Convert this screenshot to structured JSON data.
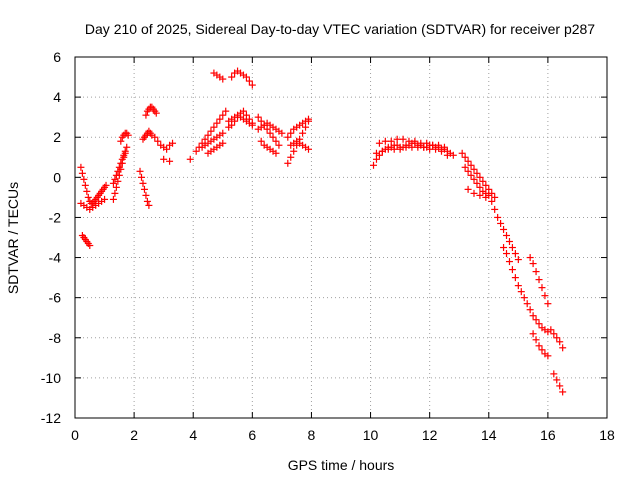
{
  "chart_data": {
    "type": "scatter",
    "title": "Day 210 of 2025, Sidereal Day-to-day VTEC variation (SDTVAR) for receiver p287",
    "xlabel": "GPS time / hours",
    "ylabel": "SDTVAR / TECUs",
    "xlim": [
      0,
      18
    ],
    "ylim": [
      -12,
      6
    ],
    "xticks": [
      0,
      2,
      4,
      6,
      8,
      10,
      12,
      14,
      16,
      18
    ],
    "yticks": [
      6,
      4,
      2,
      0,
      -2,
      -4,
      -6,
      -8,
      -10,
      -12
    ],
    "marker": "+",
    "color": "#ff0000",
    "grid": true,
    "series": [
      {
        "name": "p287",
        "x": [
          0.2,
          0.25,
          0.3,
          0.35,
          0.4,
          0.45,
          0.5,
          0.55,
          0.6,
          0.65,
          0.7,
          0.75,
          0.8,
          0.85,
          0.9,
          0.95,
          1.0,
          1.05,
          0.2,
          0.3,
          0.4,
          0.5,
          0.6,
          0.7,
          0.8,
          0.9,
          1.0,
          0.25,
          0.3,
          0.35,
          0.4,
          0.45,
          0.5,
          1.3,
          1.35,
          1.4,
          1.45,
          1.5,
          1.55,
          1.6,
          1.65,
          1.7,
          1.3,
          1.35,
          1.4,
          1.45,
          1.5,
          1.55,
          1.6,
          1.65,
          1.7,
          1.75,
          1.55,
          1.6,
          1.65,
          1.7,
          1.75,
          1.8,
          2.2,
          2.25,
          2.3,
          2.35,
          2.4,
          2.45,
          2.5,
          2.4,
          2.45,
          2.5,
          2.55,
          2.6,
          2.65,
          2.7,
          2.75,
          2.3,
          2.35,
          2.4,
          2.45,
          2.5,
          2.55,
          2.6,
          2.7,
          2.8,
          2.9,
          3.0,
          3.1,
          3.2,
          3.3,
          3.0,
          3.2,
          3.9,
          4.1,
          4.2,
          4.3,
          4.4,
          4.5,
          4.6,
          4.7,
          4.8,
          4.9,
          5.0,
          5.1,
          4.3,
          4.4,
          4.5,
          4.6,
          4.7,
          4.8,
          4.9,
          5.0,
          4.5,
          4.6,
          4.7,
          4.8,
          4.9,
          5.0,
          4.7,
          4.8,
          4.9,
          5.0,
          5.2,
          5.3,
          5.4,
          5.5,
          5.6,
          5.7,
          5.8,
          5.9,
          6.0,
          5.2,
          5.3,
          5.4,
          5.5,
          5.6,
          5.7,
          5.8,
          5.9,
          6.0,
          5.3,
          5.4,
          5.5,
          5.6,
          5.7,
          5.8,
          5.9,
          6.0,
          6.2,
          6.3,
          6.4,
          6.5,
          6.6,
          6.7,
          6.8,
          6.9,
          6.2,
          6.3,
          6.4,
          6.5,
          6.6,
          6.7,
          6.8,
          6.9,
          7.0,
          6.3,
          6.4,
          6.5,
          6.6,
          6.7,
          6.8,
          7.2,
          7.3,
          7.4,
          7.5,
          7.6,
          7.7,
          7.8,
          7.9,
          7.2,
          7.3,
          7.4,
          7.5,
          7.6,
          7.7,
          7.8,
          7.9,
          7.3,
          7.4,
          7.5,
          7.6,
          7.7,
          7.8,
          7.9,
          10.1,
          10.2,
          10.3,
          10.4,
          10.5,
          10.6,
          10.7,
          10.8,
          10.9,
          11.0,
          11.1,
          11.2,
          11.3,
          11.4,
          11.5,
          11.6,
          11.7,
          11.8,
          11.9,
          12.0,
          12.1,
          12.2,
          12.3,
          12.4,
          12.5,
          12.6,
          12.7,
          12.8,
          10.2,
          10.4,
          10.6,
          10.8,
          11.0,
          11.2,
          11.4,
          11.6,
          11.8,
          12.0,
          12.2,
          12.4,
          12.6,
          10.3,
          10.5,
          10.7,
          10.9,
          11.1,
          11.3,
          11.5,
          11.7,
          11.9,
          12.1,
          12.3,
          12.5,
          13.1,
          13.2,
          13.3,
          13.4,
          13.5,
          13.6,
          13.7,
          13.8,
          13.9,
          14.0,
          14.1,
          14.2,
          13.2,
          13.3,
          13.4,
          13.5,
          13.6,
          13.7,
          13.8,
          13.9,
          14.0,
          13.3,
          13.5,
          13.7,
          13.9,
          14.1,
          14.2,
          14.3,
          14.4,
          14.5,
          14.6,
          14.7,
          14.8,
          14.9,
          15.0,
          14.5,
          14.6,
          14.7,
          14.8,
          14.9,
          15.0,
          15.1,
          15.2,
          15.3,
          15.4,
          15.5,
          15.6,
          15.7,
          15.8,
          15.9,
          16.0,
          16.1,
          15.4,
          15.5,
          15.6,
          15.7,
          15.8,
          15.9,
          16.0,
          15.5,
          15.6,
          15.7,
          15.8,
          15.9,
          16.0,
          16.2,
          16.3,
          16.4,
          16.5,
          16.2,
          16.3,
          16.4,
          16.5
        ],
        "y": [
          0.5,
          0.2,
          -0.1,
          -0.4,
          -0.7,
          -1.0,
          -1.2,
          -1.3,
          -1.3,
          -1.2,
          -1.1,
          -1.0,
          -0.9,
          -0.8,
          -0.7,
          -0.6,
          -0.5,
          -0.4,
          -1.3,
          -1.4,
          -1.5,
          -1.6,
          -1.5,
          -1.4,
          -1.3,
          -1.2,
          -1.1,
          -2.9,
          -3.0,
          -3.1,
          -3.2,
          -3.3,
          -3.4,
          -1.1,
          -0.8,
          -0.5,
          -0.2,
          0.1,
          0.4,
          0.7,
          1.0,
          1.2,
          -0.3,
          -0.1,
          0.1,
          0.3,
          0.5,
          0.7,
          0.9,
          1.1,
          1.3,
          1.5,
          1.8,
          2.0,
          2.1,
          2.2,
          2.2,
          2.1,
          0.3,
          0.0,
          -0.3,
          -0.6,
          -0.9,
          -1.2,
          -1.4,
          3.1,
          3.3,
          3.4,
          3.5,
          3.5,
          3.4,
          3.3,
          3.2,
          1.9,
          2.0,
          2.1,
          2.2,
          2.3,
          2.2,
          2.1,
          2.0,
          1.8,
          1.6,
          1.5,
          1.4,
          1.6,
          1.7,
          0.9,
          0.8,
          0.9,
          1.3,
          1.5,
          1.7,
          1.9,
          2.1,
          2.3,
          2.5,
          2.7,
          2.9,
          3.1,
          3.3,
          1.5,
          1.6,
          1.7,
          1.8,
          1.9,
          2.0,
          2.1,
          2.2,
          1.2,
          1.3,
          1.4,
          1.5,
          1.6,
          1.7,
          5.2,
          5.1,
          5.0,
          4.9,
          2.5,
          2.6,
          2.8,
          3.0,
          3.2,
          3.3,
          3.1,
          2.9,
          2.7,
          2.8,
          2.9,
          3.0,
          3.1,
          3.0,
          2.9,
          2.8,
          2.7,
          2.6,
          5.0,
          5.2,
          5.3,
          5.2,
          5.1,
          5.0,
          4.8,
          4.6,
          3.0,
          2.8,
          2.6,
          2.4,
          2.2,
          2.0,
          1.8,
          1.6,
          2.4,
          2.5,
          2.6,
          2.7,
          2.6,
          2.5,
          2.4,
          2.3,
          2.2,
          1.8,
          1.6,
          1.5,
          1.4,
          1.3,
          1.2,
          0.7,
          1.0,
          1.3,
          1.6,
          1.9,
          2.2,
          2.5,
          2.8,
          2.0,
          2.2,
          2.4,
          2.5,
          2.6,
          2.7,
          2.8,
          2.9,
          1.6,
          1.7,
          1.8,
          1.7,
          1.6,
          1.5,
          1.4,
          0.6,
          0.9,
          1.1,
          1.3,
          1.4,
          1.5,
          1.5,
          1.6,
          1.6,
          1.5,
          1.5,
          1.6,
          1.6,
          1.7,
          1.7,
          1.6,
          1.6,
          1.5,
          1.5,
          1.6,
          1.6,
          1.5,
          1.5,
          1.4,
          1.4,
          1.3,
          1.2,
          1.1,
          1.2,
          1.3,
          1.4,
          1.4,
          1.4,
          1.5,
          1.5,
          1.5,
          1.5,
          1.4,
          1.4,
          1.3,
          1.1,
          1.7,
          1.8,
          1.8,
          1.9,
          1.9,
          1.8,
          1.8,
          1.7,
          1.7,
          1.6,
          1.6,
          1.5,
          1.2,
          1.0,
          0.8,
          0.6,
          0.4,
          0.2,
          0.0,
          -0.2,
          -0.4,
          -0.6,
          -0.8,
          -1.0,
          0.5,
          0.3,
          0.1,
          -0.1,
          -0.3,
          -0.5,
          -0.7,
          -0.8,
          -0.9,
          -0.6,
          -0.8,
          -0.9,
          -1.0,
          -1.2,
          -1.6,
          -2.0,
          -2.3,
          -2.6,
          -2.9,
          -3.2,
          -3.5,
          -3.8,
          -4.1,
          -3.5,
          -3.8,
          -4.2,
          -4.6,
          -5.0,
          -5.4,
          -5.7,
          -6.0,
          -6.3,
          -6.6,
          -6.9,
          -7.1,
          -7.3,
          -7.5,
          -7.6,
          -7.7,
          -7.6,
          -4.0,
          -4.3,
          -4.7,
          -5.1,
          -5.5,
          -5.9,
          -6.3,
          -7.8,
          -8.1,
          -8.4,
          -8.6,
          -8.8,
          -8.9,
          -9.8,
          -10.1,
          -10.4,
          -10.7,
          -7.8,
          -8.0,
          -8.2,
          -8.5
        ]
      }
    ]
  }
}
